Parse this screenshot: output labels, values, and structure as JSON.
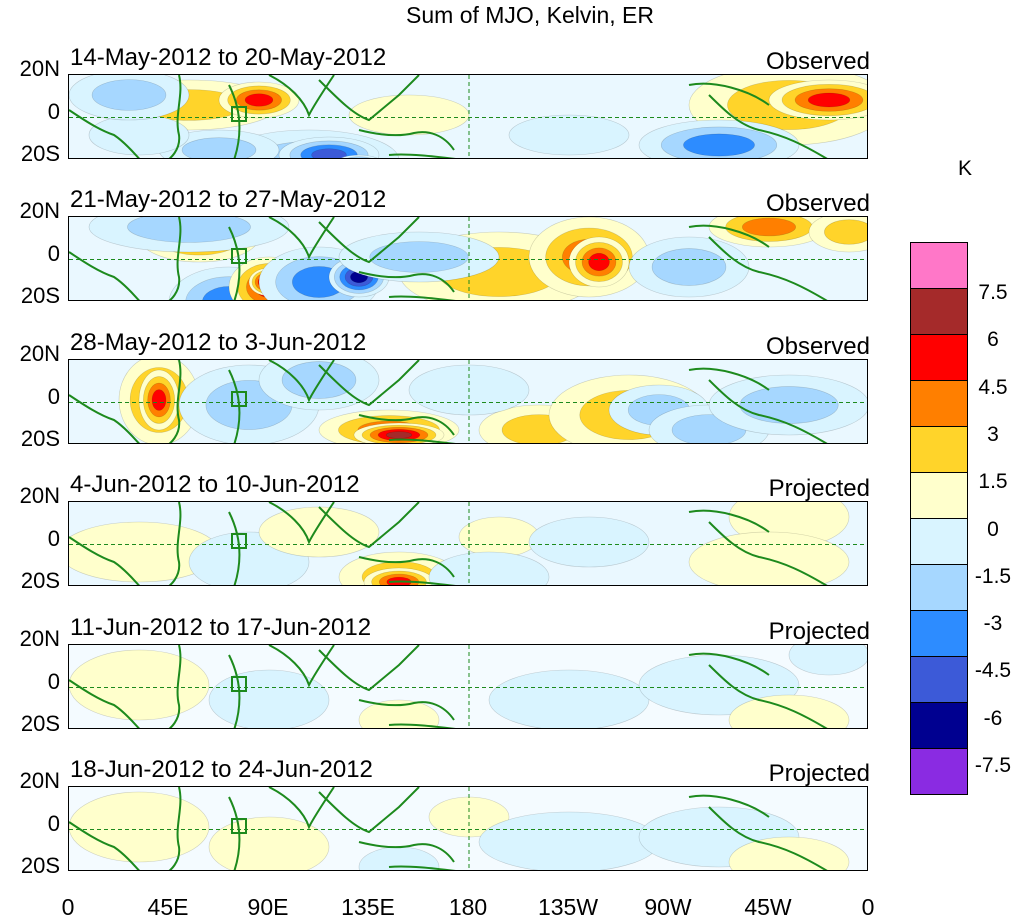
{
  "title": "Sum of MJO, Kelvin, ER",
  "y_labels": {
    "north": "20N",
    "equator": "0",
    "south": "20S"
  },
  "x_labels": [
    "0",
    "45E",
    "90E",
    "135E",
    "180",
    "135W",
    "90W",
    "45W",
    "0"
  ],
  "panels": [
    {
      "date": "14-May-2012 to 20-May-2012",
      "status": "Observed",
      "intensity": 1.0
    },
    {
      "date": "21-May-2012 to 27-May-2012",
      "status": "Observed",
      "intensity": 1.0
    },
    {
      "date": "28-May-2012 to 3-Jun-2012",
      "status": "Observed",
      "intensity": 1.0
    },
    {
      "date": "4-Jun-2012 to 10-Jun-2012",
      "status": "Projected",
      "intensity": 0.55
    },
    {
      "date": "11-Jun-2012 to 17-Jun-2012",
      "status": "Projected",
      "intensity": 0.35
    },
    {
      "date": "18-Jun-2012 to 24-Jun-2012",
      "status": "Projected",
      "intensity": 0.3
    }
  ],
  "legend": {
    "unit": "K",
    "colors": [
      "#ff77c8",
      "#a52a2a",
      "#ff0000",
      "#ff7f00",
      "#ffd42a",
      "#ffffcc",
      "#d9f4ff",
      "#a6d7ff",
      "#2d8cff",
      "#3c5ad8",
      "#000090",
      "#8a2be2"
    ],
    "labels": [
      "7.5",
      "6",
      "4.5",
      "3",
      "1.5",
      "0",
      "-1.5",
      "-3",
      "-4.5",
      "-6",
      "-7.5"
    ]
  },
  "colors": {
    "coast": "#1d8a1d",
    "grid": "#1d8a1d"
  }
}
